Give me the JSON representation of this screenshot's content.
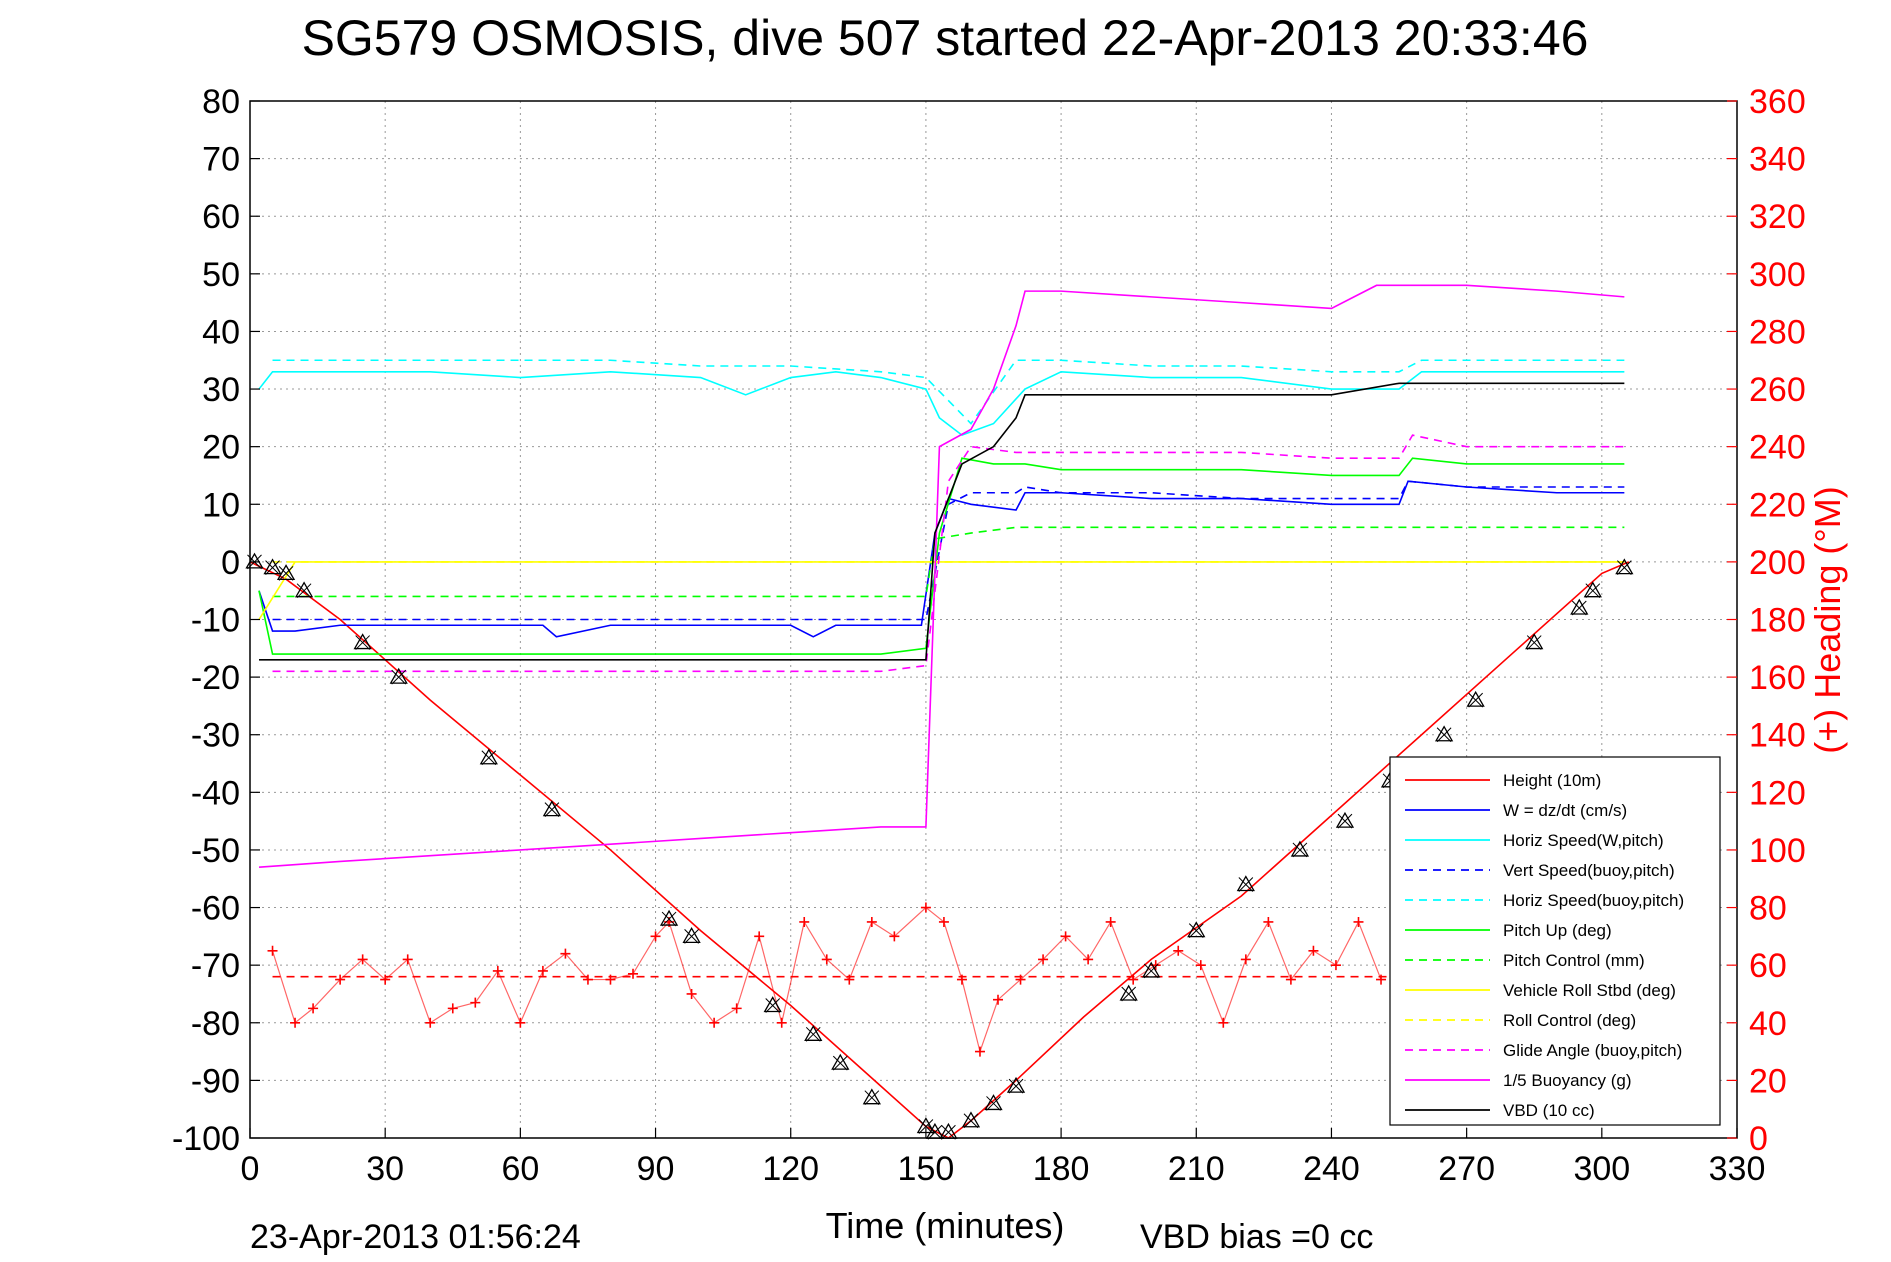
{
  "chart_data": {
    "type": "line",
    "title": "SG579 OSMOSIS, dive 507 started 22-Apr-2013 20:33:46",
    "xlabel": "Time (minutes)",
    "ylabel_right": "(+) Heading (°M)",
    "footer_left": "23-Apr-2013 01:56:24",
    "footer_right": "VBD bias =0 cc",
    "xlim": [
      0,
      330
    ],
    "ylim": [
      -100,
      80
    ],
    "ylim_right": [
      0,
      360
    ],
    "x_ticks": [
      "0",
      "30",
      "60",
      "90",
      "120",
      "150",
      "180",
      "210",
      "240",
      "270",
      "300",
      "330"
    ],
    "y_ticks": [
      "80",
      "70",
      "60",
      "50",
      "40",
      "30",
      "20",
      "10",
      "0",
      "-10",
      "-20",
      "-30",
      "-40",
      "-50",
      "-60",
      "-70",
      "-80",
      "-90",
      "-100"
    ],
    "y_right_ticks": [
      "360",
      "340",
      "320",
      "300",
      "280",
      "260",
      "240",
      "220",
      "200",
      "180",
      "160",
      "140",
      "120",
      "100",
      "80",
      "60",
      "40",
      "20",
      "0"
    ],
    "grid": true,
    "legend_position": "bottom-right",
    "series": [
      {
        "name": "Height (10m)",
        "color": "#ff0000",
        "style": "solid",
        "axis": "left",
        "x": [
          0,
          8,
          20,
          40,
          60,
          80,
          100,
          120,
          140,
          150,
          155,
          160,
          170,
          185,
          200,
          220,
          240,
          260,
          280,
          300,
          306
        ],
        "y": [
          0,
          -3,
          -10,
          -24,
          -37,
          -50,
          -64,
          -77,
          -91,
          -98,
          -100,
          -97,
          -90,
          -79,
          -69,
          -58,
          -44,
          -30,
          -16,
          -2,
          0
        ]
      },
      {
        "name": "W = dz/dt (cm/s)",
        "color": "#0000ff",
        "style": "solid",
        "axis": "left",
        "x": [
          2,
          5,
          10,
          20,
          40,
          60,
          65,
          68,
          80,
          100,
          120,
          125,
          130,
          140,
          149,
          152,
          155,
          160,
          170,
          172,
          180,
          200,
          220,
          240,
          255,
          257,
          270,
          290,
          305
        ],
        "y": [
          -5,
          -12,
          -12,
          -11,
          -11,
          -11,
          -11,
          -13,
          -11,
          -11,
          -11,
          -13,
          -11,
          -11,
          -11,
          5,
          11,
          10,
          9,
          12,
          12,
          11,
          11,
          10,
          10,
          14,
          13,
          12,
          12
        ]
      },
      {
        "name": "Horiz Speed(W,pitch)",
        "color": "#00ffff",
        "style": "solid",
        "axis": "left",
        "x": [
          2,
          5,
          20,
          40,
          60,
          80,
          100,
          110,
          120,
          130,
          140,
          150,
          153,
          158,
          165,
          172,
          180,
          200,
          220,
          240,
          255,
          260,
          270,
          290,
          305
        ],
        "y": [
          30,
          33,
          33,
          33,
          32,
          33,
          32,
          29,
          32,
          33,
          32,
          30,
          25,
          22,
          24,
          30,
          33,
          32,
          32,
          30,
          30,
          33,
          33,
          33,
          33
        ]
      },
      {
        "name": "Vert Speed(buoy,pitch)",
        "color": "#0000ff",
        "style": "dashed",
        "axis": "left",
        "x": [
          5,
          20,
          40,
          60,
          80,
          100,
          120,
          140,
          150,
          155,
          160,
          170,
          172,
          180,
          200,
          220,
          240,
          255,
          257,
          270,
          290,
          305
        ],
        "y": [
          -10,
          -10,
          -10,
          -10,
          -10,
          -10,
          -10,
          -10,
          -10,
          10,
          12,
          12,
          13,
          12,
          12,
          11,
          11,
          11,
          14,
          13,
          13,
          13
        ]
      },
      {
        "name": "Horiz Speed(buoy,pitch)",
        "color": "#00ffff",
        "style": "dashed",
        "axis": "left",
        "x": [
          5,
          20,
          40,
          60,
          80,
          100,
          120,
          140,
          150,
          155,
          160,
          170,
          180,
          200,
          220,
          240,
          255,
          260,
          270,
          290,
          305
        ],
        "y": [
          35,
          35,
          35,
          35,
          35,
          34,
          34,
          33,
          32,
          28,
          24,
          35,
          35,
          34,
          34,
          33,
          33,
          35,
          35,
          35,
          35
        ]
      },
      {
        "name": "Pitch Up (deg)",
        "color": "#00ff00",
        "style": "solid",
        "axis": "left",
        "x": [
          2,
          5,
          20,
          40,
          60,
          80,
          100,
          120,
          140,
          150,
          153,
          158,
          165,
          172,
          180,
          200,
          220,
          240,
          255,
          258,
          270,
          290,
          305
        ],
        "y": [
          -5,
          -16,
          -16,
          -16,
          -16,
          -16,
          -16,
          -16,
          -16,
          -15,
          5,
          18,
          17,
          17,
          16,
          16,
          16,
          15,
          15,
          18,
          17,
          17,
          17
        ]
      },
      {
        "name": "Pitch Control (mm)",
        "color": "#00ff00",
        "style": "dashed",
        "axis": "left",
        "x": [
          5,
          20,
          40,
          60,
          80,
          100,
          120,
          140,
          150,
          152,
          160,
          170,
          180,
          200,
          220,
          240,
          255,
          270,
          290,
          305
        ],
        "y": [
          -6,
          -6,
          -6,
          -6,
          -6,
          -6,
          -6,
          -6,
          -6,
          4,
          5,
          6,
          6,
          6,
          6,
          6,
          6,
          6,
          6,
          6
        ]
      },
      {
        "name": "Vehicle Roll Stbd (deg)",
        "color": "#ffff00",
        "style": "solid",
        "axis": "left",
        "x": [
          2,
          10,
          20,
          40,
          60,
          80,
          100,
          120,
          140,
          150,
          155,
          160,
          180,
          200,
          220,
          240,
          260,
          280,
          300,
          305
        ],
        "y": [
          -10,
          0,
          0,
          0,
          0,
          0,
          0,
          0,
          0,
          0,
          0,
          0,
          0,
          0,
          0,
          0,
          0,
          0,
          0,
          0
        ]
      },
      {
        "name": "Roll Control (deg)",
        "color": "#ffff00",
        "style": "dashed",
        "axis": "left",
        "x": [
          5,
          40,
          80,
          120,
          150,
          160,
          200,
          240,
          280,
          305
        ],
        "y": [
          0,
          0,
          0,
          0,
          0,
          0,
          0,
          0,
          0,
          0
        ]
      },
      {
        "name": "Glide Angle (buoy,pitch)",
        "color": "#ff00ff",
        "style": "dashed",
        "axis": "left",
        "x": [
          5,
          20,
          40,
          60,
          80,
          100,
          120,
          140,
          150,
          155,
          160,
          170,
          180,
          200,
          220,
          240,
          255,
          258,
          270,
          290,
          305
        ],
        "y": [
          -19,
          -19,
          -19,
          -19,
          -19,
          -19,
          -19,
          -19,
          -18,
          14,
          20,
          19,
          19,
          19,
          19,
          18,
          18,
          22,
          20,
          20,
          20
        ]
      },
      {
        "name": "1/5 Buoyancy (g)",
        "color": "#ff00ff",
        "style": "solid",
        "axis": "left",
        "x": [
          2,
          20,
          40,
          60,
          80,
          100,
          120,
          140,
          150,
          153,
          160,
          165,
          170,
          172,
          180,
          200,
          220,
          240,
          245,
          250,
          270,
          290,
          305
        ],
        "y": [
          -53,
          -52,
          -51,
          -50,
          -49,
          -48,
          -47,
          -46,
          -46,
          20,
          23,
          30,
          41,
          47,
          47,
          46,
          45,
          44,
          46,
          48,
          48,
          47,
          46
        ]
      },
      {
        "name": "VBD (10 cc)",
        "color": "#000000",
        "style": "solid",
        "axis": "left",
        "x": [
          2,
          3,
          20,
          40,
          60,
          80,
          100,
          120,
          140,
          150,
          152,
          158,
          165,
          170,
          172,
          200,
          240,
          255,
          270,
          290,
          305
        ],
        "y": [
          -17,
          -17,
          -17,
          -17,
          -17,
          -17,
          -17,
          -17,
          -17,
          -17,
          5,
          17,
          20,
          25,
          29,
          29,
          29,
          31,
          31,
          31,
          31
        ]
      },
      {
        "name": "Heading",
        "color": "#ff0000",
        "style": "markers",
        "axis": "right",
        "x": [
          5,
          10,
          14,
          20,
          25,
          30,
          35,
          40,
          45,
          50,
          55,
          60,
          65,
          70,
          75,
          80,
          85,
          90,
          93,
          98,
          103,
          108,
          113,
          118,
          123,
          128,
          133,
          138,
          143,
          150,
          154,
          158,
          162,
          166,
          171,
          176,
          181,
          186,
          191,
          196,
          201,
          206,
          211,
          216,
          221,
          226,
          231,
          236,
          241,
          246,
          251
        ],
        "y": [
          65,
          40,
          45,
          55,
          62,
          55,
          62,
          40,
          45,
          47,
          58,
          40,
          58,
          64,
          55,
          55,
          57,
          70,
          75,
          50,
          40,
          45,
          70,
          40,
          75,
          62,
          55,
          75,
          70,
          80,
          75,
          55,
          30,
          48,
          55,
          62,
          70,
          62,
          75,
          55,
          60,
          65,
          60,
          40,
          62,
          75,
          55,
          65,
          60,
          75,
          55
        ]
      },
      {
        "name": "Heading mean",
        "color": "#ff0000",
        "style": "dashed",
        "axis": "right",
        "x": [
          5,
          305
        ],
        "y": [
          56,
          56
        ]
      }
    ],
    "markers": {
      "name": "Height samples",
      "color": "#000000",
      "shape": "triangle",
      "axis": "left",
      "x": [
        1,
        5,
        8,
        12,
        25,
        33,
        53,
        67,
        93,
        98,
        116,
        125,
        131,
        138,
        150,
        152,
        155,
        160,
        165,
        170,
        195,
        200,
        210,
        221,
        233,
        243,
        253,
        265,
        272,
        285,
        295,
        298,
        305
      ],
      "y": [
        0,
        -1,
        -2,
        -5,
        -14,
        -20,
        -34,
        -43,
        -62,
        -65,
        -77,
        -82,
        -87,
        -93,
        -98,
        -99,
        -99,
        -97,
        -94,
        -91,
        -75,
        -71,
        -64,
        -56,
        -50,
        -45,
        -38,
        -30,
        -24,
        -14,
        -8,
        -5,
        -1
      ]
    }
  }
}
